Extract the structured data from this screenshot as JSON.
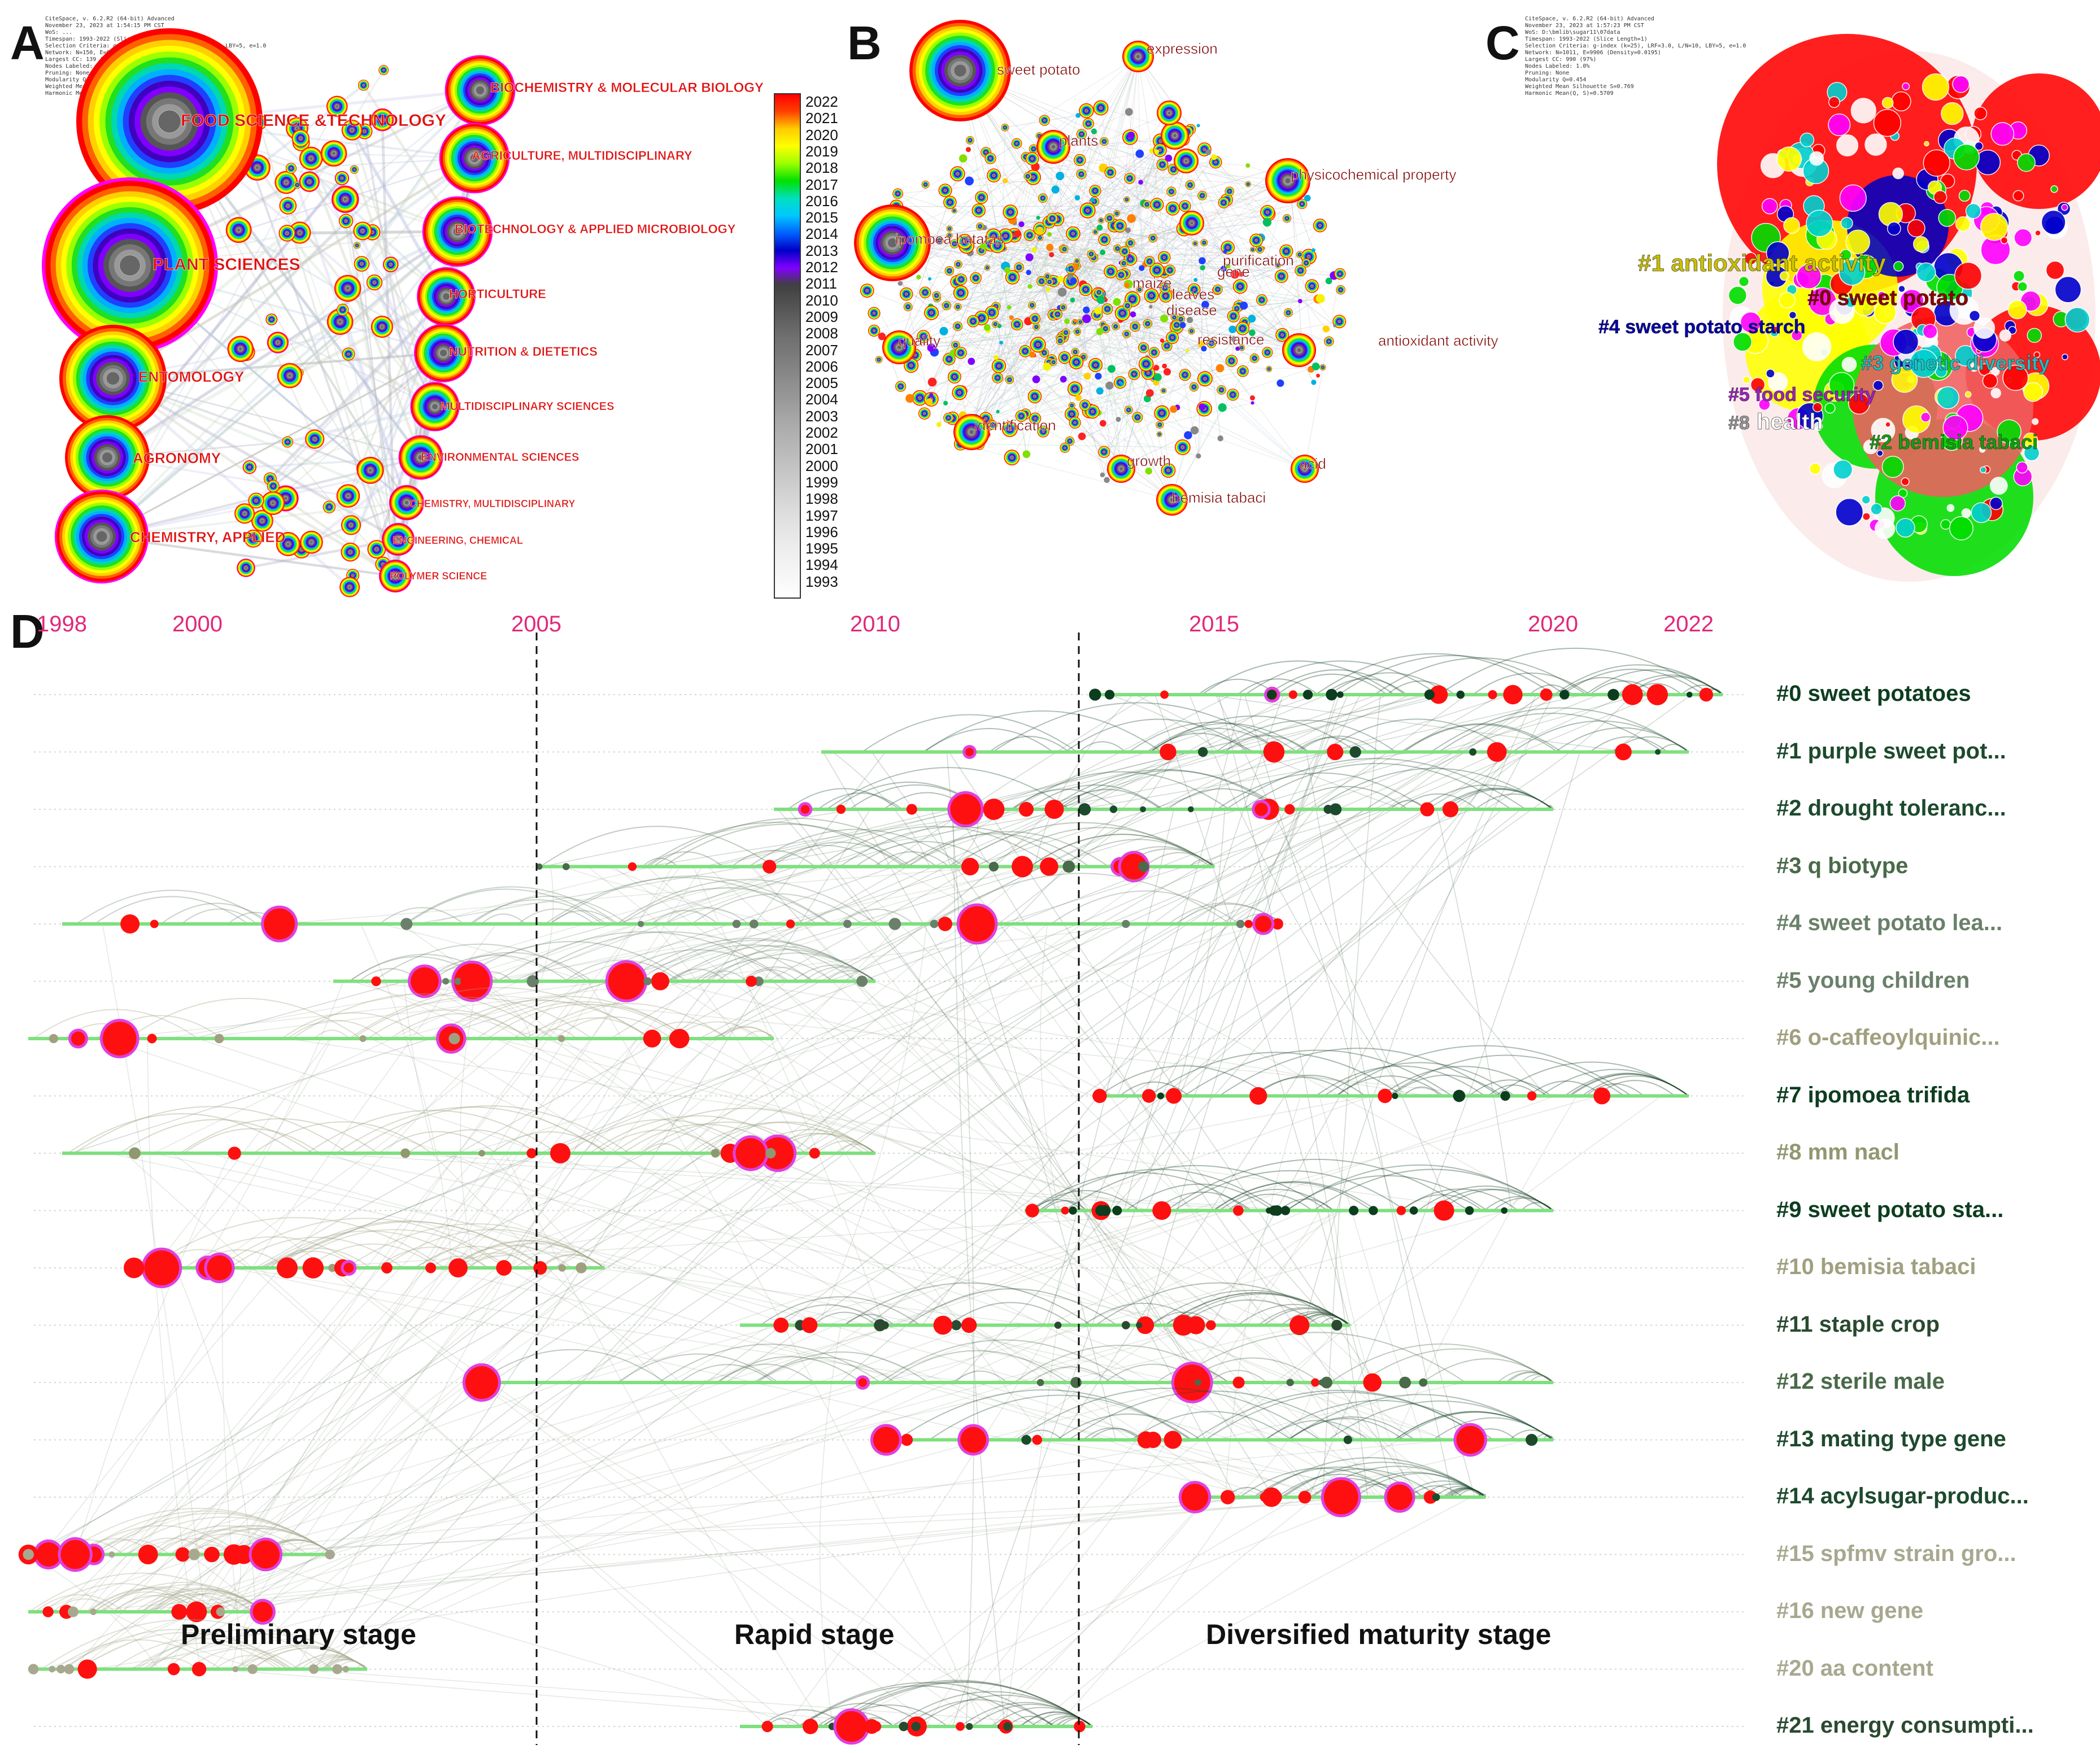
{
  "panels": {
    "a": "A",
    "b": "B",
    "c": "C",
    "d": "D"
  },
  "panelA": {
    "header_lines": [
      "CiteSpace, v. 6.2.R2 (64-bit) Advanced",
      "November 23, 2023 at 1:54:15 PM CST",
      "WoS: ...",
      "Timespan: 1993-2022 (Slice Length=1)",
      "Selection Criteria: g-index (k=25), LRF=3.0, L/N=10, LBY=5, e=1.0",
      "Network: N=150, E=643 (Density=0.0580)",
      "Largest CC: 139 (92%)",
      "Nodes Labeled: 1.0%",
      "Pruning: None",
      "Modularity Q=0.454",
      "Weighted Mean Silhouette S=0.769",
      "Harmonic Mean(Q, S)=0.5709"
    ],
    "labels": [
      "FOOD SCIENCE &TECHNOLOGY",
      "PLANT SCIENCES",
      "ENTOMOLOGY",
      "AGRONOMY",
      "CHEMISTRY, APPLIED",
      "BIOCHEMISTRY & MOLECULAR BIOLOGY",
      "AGRICULTURE, MULTIDISCIPLINARY",
      "BIOTECHNOLOGY & APPLIED MICROBIOLOGY",
      "HORTICULTURE",
      "NUTRITION & DIETETICS",
      "MULTIDISCIPLINARY SCIENCES",
      "ENVIRONMENTAL SCIENCES",
      "CHEMISTRY, MULTIDISCIPLINARY",
      "ENGINEERING, CHEMICAL",
      "POLYMER SCIENCE"
    ]
  },
  "legend": {
    "years": [
      "2022",
      "2021",
      "2020",
      "2019",
      "2018",
      "2017",
      "2016",
      "2015",
      "2014",
      "2013",
      "2012",
      "2011",
      "2010",
      "2009",
      "2008",
      "2007",
      "2006",
      "2005",
      "2004",
      "2003",
      "2002",
      "2001",
      "2000",
      "1999",
      "1998",
      "1997",
      "1996",
      "1995",
      "1994",
      "1993"
    ],
    "colors": [
      "#ff0000",
      "#ff4000",
      "#ffcc00",
      "#ffff00",
      "#99ff00",
      "#00e000",
      "#00e0c0",
      "#00c8ff",
      "#0060ff",
      "#0000c8",
      "#8000ff",
      "#404040",
      "#505050",
      "#606060",
      "#707070",
      "#7a7a7a",
      "#868686",
      "#929292",
      "#9e9e9e",
      "#aaaaaa",
      "#b4b4b4",
      "#bebebe",
      "#c8c8c8",
      "#d2d2d2",
      "#dcdcdc",
      "#e4e4e4",
      "#ececec",
      "#f2f2f2",
      "#f8f8f8",
      "#ffffff"
    ]
  },
  "panelB": {
    "labels": [
      "sweet potato",
      "expression",
      "plants",
      "physicochemical property",
      "ipomoea batatas",
      "purification",
      "gene",
      "maize",
      "leaves",
      "disease",
      "quality",
      "resistance",
      "antioxidant activity",
      "identification",
      "growth",
      "acid",
      "bemisia tabaci"
    ]
  },
  "panelC": {
    "header_lines": [
      "CiteSpace, v. 6.2.R2 (64-bit) Advanced",
      "November 23, 2023 at 1:57:23 PM CST",
      "WoS: D:\\bmlib\\sugar11\\07data",
      "Timespan: 1993-2022 (Slice Length=1)",
      "Selection Criteria: g-index (k=25), LRF=3.0, L/N=10, LBY=5, e=1.0",
      "Network: N=1011, E=9906 (Density=0.0195)",
      "Largest CC: 990 (97%)",
      "Nodes Labeled: 1.0%",
      "Pruning: None",
      "Modularity Q=0.454",
      "Weighted Mean Silhouette S=0.769",
      "Harmonic Mean(Q, S)=0.5709"
    ],
    "clusters": [
      {
        "text": "#1 antioxidant activity",
        "color": "#c8c000"
      },
      {
        "text": "#0 sweet potato",
        "color": "#8a0000"
      },
      {
        "text": "#4 sweet potato starch",
        "color": "#0000aa"
      },
      {
        "text": "#3 genetic diversity",
        "color": "#20c0c0"
      },
      {
        "text": "#5 food security",
        "color": "#a020c0"
      },
      {
        "text": "#8",
        "color": "#9a9a9a"
      },
      {
        "text": "health",
        "color": "#ffffff"
      },
      {
        "text": "#2 bemisia tabaci",
        "color": "#10a010"
      }
    ]
  },
  "panelD": {
    "years": [
      {
        "label": "1998",
        "year": 1998
      },
      {
        "label": "2000",
        "year": 2000
      },
      {
        "label": "2005",
        "year": 2005
      },
      {
        "label": "2010",
        "year": 2010
      },
      {
        "label": "2015",
        "year": 2015
      },
      {
        "label": "2020",
        "year": 2020
      },
      {
        "label": "2022",
        "year": 2022
      }
    ],
    "stage_dividers": [
      2005,
      2013
    ],
    "stages": [
      "Preliminary stage",
      "Rapid stage",
      "Diversified maturity stage"
    ],
    "clusters": [
      {
        "label": "#0 sweet potatoes",
        "start": 2013.2,
        "end": 2022.5,
        "shade": "#0d3d1f"
      },
      {
        "label": "#1 purple sweet pot...",
        "start": 2009.2,
        "end": 2022.0,
        "shade": "#1d4a2d"
      },
      {
        "label": "#2 drought toleranc...",
        "start": 2008.5,
        "end": 2020.0,
        "shade": "#1d4a2d"
      },
      {
        "label": "#3 q biotype",
        "start": 2005.0,
        "end": 2015.0,
        "shade": "#4a6a4a"
      },
      {
        "label": "#4 sweet potato lea...",
        "start": 1998.0,
        "end": 2016.0,
        "shade": "#6a806a"
      },
      {
        "label": "#5 young children",
        "start": 2002.0,
        "end": 2010.0,
        "shade": "#6a806a"
      },
      {
        "label": "#6 o-caffeoylquinic...",
        "start": 1997.5,
        "end": 2008.5,
        "shade": "#a0a080"
      },
      {
        "label": "#7 ipomoea trifida",
        "start": 2013.2,
        "end": 2022.0,
        "shade": "#0d3d1f"
      },
      {
        "label": "#8 mm nacl",
        "start": 1998.0,
        "end": 2010.0,
        "shade": "#909870"
      },
      {
        "label": "#9 sweet potato sta...",
        "start": 2012.2,
        "end": 2020.0,
        "shade": "#0d3d1f"
      },
      {
        "label": "#10 bemisia tabaci",
        "start": 1999.0,
        "end": 2006.0,
        "shade": "#a0a080"
      },
      {
        "label": "#11 staple crop",
        "start": 2008.0,
        "end": 2017.0,
        "shade": "#2a4a30"
      },
      {
        "label": "#12 sterile male",
        "start": 2004.0,
        "end": 2020.0,
        "shade": "#4a6a4a"
      },
      {
        "label": "#13 mating type gene",
        "start": 2010.0,
        "end": 2020.0,
        "shade": "#1d4a2d"
      },
      {
        "label": "#14 acylsugar-produc...",
        "start": 2014.7,
        "end": 2019.0,
        "shade": "#1d4a2d"
      },
      {
        "label": "#15 spfmv strain gro...",
        "start": 1997.5,
        "end": 2002.0,
        "shade": "#a8a890"
      },
      {
        "label": "#16 new gene",
        "start": 1997.5,
        "end": 2001.0,
        "shade": "#a8a890"
      },
      {
        "label": "#20 aa content",
        "start": 1997.5,
        "end": 2002.5,
        "shade": "#a8a890"
      },
      {
        "label": "#21 energy consumpti...",
        "start": 2008.0,
        "end": 2013.2,
        "shade": "#2a4a30"
      }
    ]
  }
}
